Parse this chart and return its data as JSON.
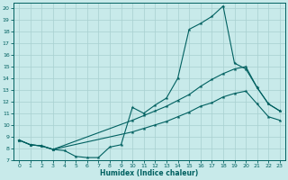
{
  "xlabel": "Humidex (Indice chaleur)",
  "bg_color": "#c8eaea",
  "line_color": "#006060",
  "grid_color": "#a8d0d0",
  "xlim": [
    -0.5,
    23.5
  ],
  "ylim": [
    7,
    20.5
  ],
  "yticks": [
    7,
    8,
    9,
    10,
    11,
    12,
    13,
    14,
    15,
    16,
    17,
    18,
    19,
    20
  ],
  "xticks": [
    0,
    1,
    2,
    3,
    4,
    5,
    6,
    7,
    8,
    9,
    10,
    11,
    12,
    13,
    14,
    15,
    16,
    17,
    18,
    19,
    20,
    21,
    22,
    23
  ],
  "line1_x": [
    0,
    1,
    2,
    3,
    4,
    5,
    6,
    7,
    8,
    9,
    10,
    11,
    12,
    13,
    14,
    15,
    16,
    17,
    18,
    19,
    20,
    21,
    22,
    23
  ],
  "line1_y": [
    8.7,
    8.3,
    8.2,
    7.9,
    7.8,
    7.3,
    7.2,
    7.2,
    8.1,
    8.3,
    11.5,
    11.0,
    11.7,
    12.3,
    14.0,
    18.2,
    18.7,
    19.3,
    20.2,
    15.3,
    14.8,
    13.2,
    11.8,
    11.2
  ],
  "line2_x": [
    0,
    1,
    2,
    3,
    10,
    11,
    12,
    13,
    14,
    15,
    16,
    17,
    18,
    19,
    20,
    21,
    22,
    23
  ],
  "line2_y": [
    8.7,
    8.3,
    8.2,
    7.9,
    10.4,
    10.8,
    11.2,
    11.6,
    12.1,
    12.6,
    13.3,
    13.9,
    14.4,
    14.8,
    15.0,
    13.2,
    11.8,
    11.2
  ],
  "line3_x": [
    0,
    1,
    2,
    3,
    10,
    11,
    12,
    13,
    14,
    15,
    16,
    17,
    18,
    19,
    20,
    21,
    22,
    23
  ],
  "line3_y": [
    8.7,
    8.3,
    8.2,
    7.9,
    9.4,
    9.7,
    10.0,
    10.3,
    10.7,
    11.1,
    11.6,
    11.9,
    12.4,
    12.7,
    12.9,
    11.8,
    10.7,
    10.4
  ]
}
